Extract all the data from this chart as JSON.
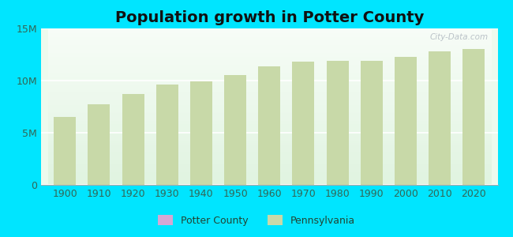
{
  "title": "Population growth in Potter County",
  "years": [
    1900,
    1910,
    1920,
    1930,
    1940,
    1950,
    1960,
    1970,
    1980,
    1990,
    2000,
    2010,
    2020
  ],
  "pennsylvania_values": [
    6500000,
    7700000,
    8700000,
    9600000,
    9900000,
    10500000,
    11400000,
    11800000,
    11900000,
    11900000,
    12300000,
    12800000,
    13000000
  ],
  "background_color": "#00e5ff",
  "plot_bg_color": "#edfaed",
  "bar_color": "#c8d9a8",
  "ylim": [
    0,
    15000000
  ],
  "yticks": [
    0,
    5000000,
    10000000,
    15000000
  ],
  "ytick_labels": [
    "0",
    "5M",
    "10M",
    "15M"
  ],
  "legend_potter_color": "#d4a8d4",
  "legend_penn_color": "#c8d9a8",
  "title_fontsize": 14,
  "tick_fontsize": 9,
  "legend_fontsize": 9,
  "bar_width": 0.65,
  "watermark": "City-Data.com"
}
